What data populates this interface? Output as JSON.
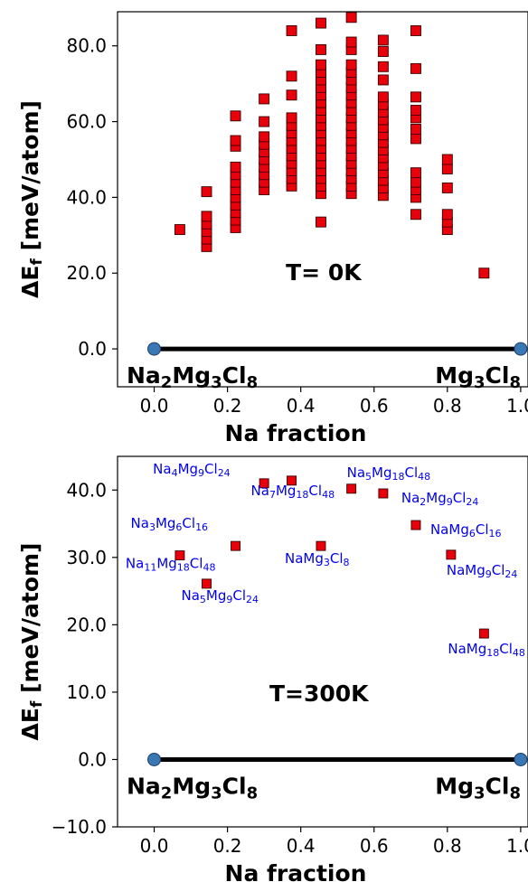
{
  "chart_data": [
    {
      "type": "scatter",
      "xlabel": "Na fraction",
      "ylabel_main": "ΔE",
      "ylabel_sub": "f",
      "ylabel_rest": " [meV/atom]",
      "xlim": [
        -0.1,
        1.02
      ],
      "ylim": [
        -10,
        89
      ],
      "xticks": [
        0.0,
        0.2,
        0.4,
        0.6,
        0.8,
        1.0
      ],
      "xtick_labels": [
        "0.0",
        "0.2",
        "0.4",
        "0.6",
        "0.8",
        "1.0"
      ],
      "yticks": [
        0,
        20,
        40,
        60,
        80
      ],
      "ytick_labels": [
        "0.0",
        "20.0",
        "40.0",
        "60.0",
        "80.0"
      ],
      "annotation": "T= 0K",
      "marker_color": "#e8000b",
      "hull": {
        "color": "#000000",
        "points": [
          {
            "x": 0.0,
            "y": 0.0,
            "label_main": [
              "Na",
              "2",
              "Mg",
              "3",
              "Cl",
              "8"
            ]
          },
          {
            "x": 1.0,
            "y": 0.0,
            "label_main": [
              "Mg",
              "3",
              "Cl",
              "8"
            ]
          }
        ],
        "point_color": "#3a78b5"
      },
      "points": [
        [
          0.07,
          31.5
        ],
        [
          0.143,
          27
        ],
        [
          0.143,
          29
        ],
        [
          0.143,
          31
        ],
        [
          0.143,
          33
        ],
        [
          0.143,
          35
        ],
        [
          0.143,
          41.5
        ],
        [
          0.222,
          32
        ],
        [
          0.222,
          34
        ],
        [
          0.222,
          36
        ],
        [
          0.222,
          38
        ],
        [
          0.222,
          40
        ],
        [
          0.222,
          42
        ],
        [
          0.222,
          44
        ],
        [
          0.222,
          46
        ],
        [
          0.222,
          48
        ],
        [
          0.222,
          53.5
        ],
        [
          0.222,
          55
        ],
        [
          0.222,
          61.5
        ],
        [
          0.3,
          42
        ],
        [
          0.3,
          44
        ],
        [
          0.3,
          46
        ],
        [
          0.3,
          48
        ],
        [
          0.3,
          50
        ],
        [
          0.3,
          52
        ],
        [
          0.3,
          54
        ],
        [
          0.3,
          56
        ],
        [
          0.3,
          60
        ],
        [
          0.3,
          66
        ],
        [
          0.375,
          43
        ],
        [
          0.375,
          45
        ],
        [
          0.375,
          47
        ],
        [
          0.375,
          49
        ],
        [
          0.375,
          51
        ],
        [
          0.375,
          53
        ],
        [
          0.375,
          55
        ],
        [
          0.375,
          57
        ],
        [
          0.375,
          59
        ],
        [
          0.375,
          61
        ],
        [
          0.375,
          67
        ],
        [
          0.375,
          72
        ],
        [
          0.375,
          84
        ],
        [
          0.455,
          33.5
        ],
        [
          0.455,
          41
        ],
        [
          0.455,
          43
        ],
        [
          0.455,
          45
        ],
        [
          0.455,
          47
        ],
        [
          0.455,
          49
        ],
        [
          0.455,
          51
        ],
        [
          0.455,
          53
        ],
        [
          0.455,
          55
        ],
        [
          0.455,
          57
        ],
        [
          0.455,
          59
        ],
        [
          0.455,
          61
        ],
        [
          0.455,
          63
        ],
        [
          0.455,
          65
        ],
        [
          0.455,
          67
        ],
        [
          0.455,
          69
        ],
        [
          0.455,
          71
        ],
        [
          0.455,
          73
        ],
        [
          0.455,
          75
        ],
        [
          0.455,
          79
        ],
        [
          0.455,
          86
        ],
        [
          0.538,
          41
        ],
        [
          0.538,
          43
        ],
        [
          0.538,
          45
        ],
        [
          0.538,
          47
        ],
        [
          0.538,
          49
        ],
        [
          0.538,
          51
        ],
        [
          0.538,
          53
        ],
        [
          0.538,
          55
        ],
        [
          0.538,
          57
        ],
        [
          0.538,
          59
        ],
        [
          0.538,
          61
        ],
        [
          0.538,
          63
        ],
        [
          0.538,
          65
        ],
        [
          0.538,
          67
        ],
        [
          0.538,
          69
        ],
        [
          0.538,
          71
        ],
        [
          0.538,
          73
        ],
        [
          0.538,
          75
        ],
        [
          0.538,
          79
        ],
        [
          0.538,
          81
        ],
        [
          0.538,
          87.5
        ],
        [
          0.625,
          40.5
        ],
        [
          0.625,
          42.5
        ],
        [
          0.625,
          44.5
        ],
        [
          0.625,
          46.5
        ],
        [
          0.625,
          48.5
        ],
        [
          0.625,
          50.5
        ],
        [
          0.625,
          52.5
        ],
        [
          0.625,
          54.5
        ],
        [
          0.625,
          56.5
        ],
        [
          0.625,
          58.5
        ],
        [
          0.625,
          60.5
        ],
        [
          0.625,
          62.5
        ],
        [
          0.625,
          64.5
        ],
        [
          0.625,
          66.5
        ],
        [
          0.625,
          71
        ],
        [
          0.625,
          74.5
        ],
        [
          0.625,
          78.5
        ],
        [
          0.625,
          81.5
        ],
        [
          0.714,
          35.5
        ],
        [
          0.714,
          40
        ],
        [
          0.714,
          42
        ],
        [
          0.714,
          44
        ],
        [
          0.714,
          46.5
        ],
        [
          0.714,
          55.5
        ],
        [
          0.714,
          58
        ],
        [
          0.714,
          61
        ],
        [
          0.714,
          63
        ],
        [
          0.714,
          66.5
        ],
        [
          0.714,
          74
        ],
        [
          0.714,
          84
        ],
        [
          0.8,
          31.5
        ],
        [
          0.8,
          33.5
        ],
        [
          0.8,
          35.5
        ],
        [
          0.8,
          42.5
        ],
        [
          0.8,
          47.5
        ],
        [
          0.8,
          50
        ],
        [
          0.9,
          20
        ]
      ]
    },
    {
      "type": "scatter",
      "xlabel": "Na fraction",
      "ylabel_main": "ΔE",
      "ylabel_sub": "f",
      "ylabel_rest": " [meV/atom]",
      "xlim": [
        -0.1,
        1.02
      ],
      "ylim": [
        -10,
        45
      ],
      "xticks": [
        0.0,
        0.2,
        0.4,
        0.6,
        0.8,
        1.0
      ],
      "xtick_labels": [
        "0.0",
        "0.2",
        "0.4",
        "0.6",
        "0.8",
        "1.0"
      ],
      "yticks": [
        -10,
        0,
        10,
        20,
        30,
        40
      ],
      "ytick_labels": [
        "−10.0",
        "0.0",
        "10.0",
        "20.0",
        "30.0",
        "40.0"
      ],
      "annotation": "T=300K",
      "marker_color": "#e8000b",
      "label_color": "#0000ee",
      "hull": {
        "color": "#000000",
        "points": [
          {
            "x": 0.0,
            "y": 0.0,
            "label_main": [
              "Na",
              "2",
              "Mg",
              "3",
              "Cl",
              "8"
            ]
          },
          {
            "x": 1.0,
            "y": 0.0,
            "label_main": [
              "Mg",
              "3",
              "Cl",
              "8"
            ]
          }
        ],
        "point_color": "#3a78b5"
      },
      "points": [
        {
          "x": 0.07,
          "y": 30.3,
          "label": [
            "Na",
            "11",
            "Mg",
            "18",
            "Cl",
            "48"
          ],
          "anchor": "start",
          "dx": -60,
          "dy": 14
        },
        {
          "x": 0.143,
          "y": 26.1,
          "label": [
            "Na",
            "5",
            "Mg",
            "9",
            "Cl",
            "24"
          ],
          "anchor": "start",
          "dx": -28,
          "dy": 18
        },
        {
          "x": 0.222,
          "y": 31.7,
          "label": [
            "Na",
            "3",
            "Mg",
            "6",
            "Cl",
            "16"
          ],
          "anchor": "start",
          "dx": -116,
          "dy": -20
        },
        {
          "x": 0.3,
          "y": 41.0,
          "label": [
            "Na",
            "4",
            "Mg",
            "9",
            "Cl",
            "24"
          ],
          "anchor": "start",
          "dx": -123,
          "dy": -11
        },
        {
          "x": 0.375,
          "y": 41.4,
          "label": [
            "Na",
            "7",
            "Mg",
            "18",
            "Cl",
            "48"
          ],
          "anchor": "start",
          "dx": -45,
          "dy": 16
        },
        {
          "x": 0.455,
          "y": 31.7,
          "label": [
            "Na",
            "Mg",
            "3",
            "Cl",
            "8"
          ],
          "anchor": "start",
          "dx": -40,
          "dy": 19
        },
        {
          "x": 0.538,
          "y": 40.2,
          "label": [
            "Na",
            "5",
            "Mg",
            "18",
            "Cl",
            "48"
          ],
          "anchor": "start",
          "dx": -5,
          "dy": -13
        },
        {
          "x": 0.625,
          "y": 39.5,
          "label": [
            "Na",
            "2",
            "Mg",
            "9",
            "Cl",
            "24"
          ],
          "anchor": "start",
          "dx": 20,
          "dy": 10
        },
        {
          "x": 0.714,
          "y": 34.8,
          "label": [
            "Na",
            "Mg",
            "6",
            "Cl",
            "16"
          ],
          "anchor": "start",
          "dx": 16,
          "dy": 10
        },
        {
          "x": 0.81,
          "y": 30.4,
          "label": [
            "Na",
            "Mg",
            "9",
            "Cl",
            "24"
          ],
          "anchor": "start",
          "dx": -5,
          "dy": 22
        },
        {
          "x": 0.9,
          "y": 18.7,
          "label": [
            "Na",
            "Mg",
            "18",
            "Cl",
            "48"
          ],
          "anchor": "start",
          "dx": -40,
          "dy": 22
        }
      ]
    }
  ]
}
